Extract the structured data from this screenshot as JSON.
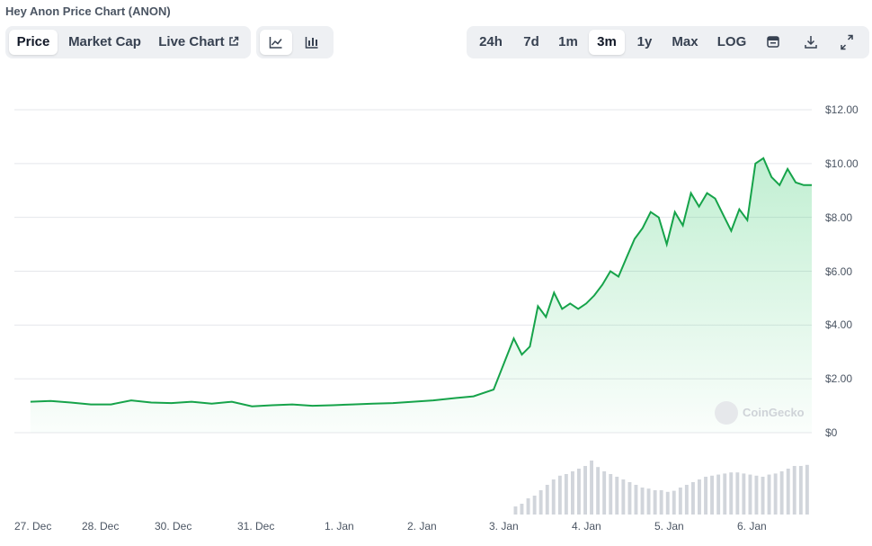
{
  "title": "Hey Anon Price Chart (ANON)",
  "tabs": {
    "price": "Price",
    "market_cap": "Market Cap",
    "live_chart": "Live Chart",
    "active": "Price"
  },
  "view_icons": [
    "line-chart-icon",
    "candlestick-chart-icon"
  ],
  "ranges": {
    "items": [
      "24h",
      "7d",
      "1m",
      "3m",
      "1y",
      "Max",
      "LOG"
    ],
    "active": "3m"
  },
  "tool_icons": [
    "calendar-icon",
    "download-icon",
    "expand-icon"
  ],
  "watermark": "CoinGecko",
  "colors": {
    "line": "#16a34a",
    "fill": "#22c55e",
    "volume": "#d1d5db",
    "grid": "#e5e7eb"
  },
  "chart_data": {
    "type": "area",
    "ylim": [
      0,
      12
    ],
    "y_ticks": [
      "$12.00",
      "$10.00",
      "$8.00",
      "$6.00",
      "$4.00",
      "$2.00",
      "$0"
    ],
    "y_tick_values": [
      12,
      10,
      8,
      6,
      4,
      2,
      0
    ],
    "x_ticks": [
      "27. Dec",
      "28. Dec",
      "30. Dec",
      "31. Dec",
      "1. Jan",
      "2. Jan",
      "3. Jan",
      "4. Jan",
      "5. Jan",
      "6. Jan"
    ],
    "x_tick_values": [
      0,
      1,
      2,
      3,
      4,
      5,
      6,
      7,
      8,
      9
    ],
    "grid": true,
    "series": [
      {
        "x": [
          0,
          0.25,
          0.5,
          0.75,
          1.0,
          1.25,
          1.5,
          1.75,
          2.0,
          2.25,
          2.5,
          2.75,
          3.0,
          3.25,
          3.5,
          3.75,
          4.0,
          4.25,
          4.5,
          4.75,
          5.0,
          5.25,
          5.5,
          5.75,
          6.0,
          6.1,
          6.2,
          6.3,
          6.4,
          6.5,
          6.6,
          6.7,
          6.8,
          6.9,
          7.0,
          7.1,
          7.2,
          7.3,
          7.4,
          7.5,
          7.6,
          7.7,
          7.8,
          7.9,
          8.0,
          8.1,
          8.2,
          8.3,
          8.4,
          8.5,
          8.6,
          8.7,
          8.8,
          8.9,
          9.0,
          9.1,
          9.2,
          9.3,
          9.4,
          9.5,
          9.6,
          9.7
        ],
        "values": [
          1.15,
          1.18,
          1.12,
          1.05,
          1.05,
          1.2,
          1.12,
          1.1,
          1.15,
          1.08,
          1.15,
          0.98,
          1.02,
          1.05,
          1.0,
          1.02,
          1.05,
          1.08,
          1.1,
          1.15,
          1.2,
          1.28,
          1.35,
          1.6,
          3.5,
          2.9,
          3.2,
          4.7,
          4.3,
          5.2,
          4.6,
          4.8,
          4.6,
          4.8,
          5.1,
          5.5,
          6.0,
          5.8,
          6.5,
          7.2,
          7.6,
          8.2,
          8.0,
          7.0,
          8.2,
          7.7,
          8.9,
          8.4,
          8.9,
          8.7,
          8.1,
          7.5,
          8.3,
          7.9,
          10.0,
          10.2,
          9.5,
          9.2,
          9.8,
          9.3,
          9.2,
          9.2
        ]
      }
    ],
    "volume": [
      0.15,
      0.2,
      0.3,
      0.35,
      0.45,
      0.55,
      0.65,
      0.72,
      0.75,
      0.8,
      0.85,
      0.9,
      1.0,
      0.88,
      0.8,
      0.75,
      0.7,
      0.65,
      0.6,
      0.55,
      0.5,
      0.48,
      0.45,
      0.45,
      0.42,
      0.44,
      0.5,
      0.55,
      0.6,
      0.65,
      0.7,
      0.72,
      0.74,
      0.76,
      0.78,
      0.78,
      0.76,
      0.74,
      0.72,
      0.7,
      0.74,
      0.76,
      0.8,
      0.85,
      0.9,
      0.9,
      0.92
    ],
    "volume_start": 6.0,
    "volume_end": 9.7
  }
}
